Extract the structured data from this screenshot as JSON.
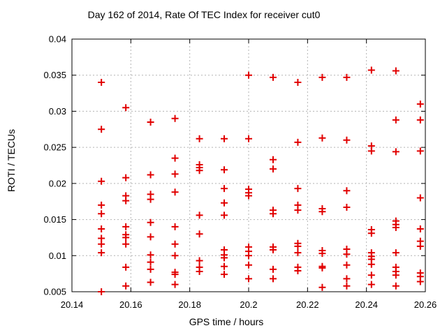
{
  "chart_data": {
    "type": "scatter",
    "title": "Day 162 of 2014, Rate Of TEC Index for receiver cut0",
    "xlabel": "GPS time / hours",
    "ylabel": "ROTI / TECUs",
    "xlim": [
      20.14,
      20.26
    ],
    "ylim": [
      0.005,
      0.04
    ],
    "xticks": [
      20.14,
      20.16,
      20.18,
      20.2,
      20.22,
      20.24,
      20.26
    ],
    "xtick_labels": [
      "20.14",
      "20.16",
      "20.18",
      "20.2",
      "20.22",
      "20.24",
      "20.26"
    ],
    "yticks": [
      0.005,
      0.01,
      0.015,
      0.02,
      0.025,
      0.03,
      0.035,
      0.04
    ],
    "ytick_labels": [
      "0.005",
      "0.01",
      "0.015",
      "0.02",
      "0.025",
      "0.03",
      "0.035",
      "0.04"
    ],
    "grid": true,
    "legend": "none",
    "marker": "plus",
    "colors": {
      "marker": "#e10000",
      "grid": "#b3b3b3",
      "axis": "#000000",
      "text": "#000000",
      "background": "#ffffff"
    },
    "series": [
      {
        "name": "ROTI receiver cut0",
        "points": [
          [
            20.15,
            0.034
          ],
          [
            20.15,
            0.0275
          ],
          [
            20.15,
            0.0203
          ],
          [
            20.15,
            0.017
          ],
          [
            20.15,
            0.0158
          ],
          [
            20.15,
            0.0137
          ],
          [
            20.15,
            0.0124
          ],
          [
            20.15,
            0.0116
          ],
          [
            20.15,
            0.0104
          ],
          [
            20.15,
            0.005
          ],
          [
            20.1583,
            0.0305
          ],
          [
            20.1583,
            0.0208
          ],
          [
            20.1583,
            0.0183
          ],
          [
            20.1583,
            0.0176
          ],
          [
            20.1583,
            0.014
          ],
          [
            20.1583,
            0.0129
          ],
          [
            20.1583,
            0.0125
          ],
          [
            20.1583,
            0.0116
          ],
          [
            20.1583,
            0.0084
          ],
          [
            20.1583,
            0.0058
          ],
          [
            20.1667,
            0.0285
          ],
          [
            20.1667,
            0.0212
          ],
          [
            20.1667,
            0.0185
          ],
          [
            20.1667,
            0.0178
          ],
          [
            20.1667,
            0.0146
          ],
          [
            20.1667,
            0.0126
          ],
          [
            20.1667,
            0.0101
          ],
          [
            20.1667,
            0.0091
          ],
          [
            20.1667,
            0.0081
          ],
          [
            20.1667,
            0.0063
          ],
          [
            20.175,
            0.029
          ],
          [
            20.175,
            0.0235
          ],
          [
            20.175,
            0.0213
          ],
          [
            20.175,
            0.0188
          ],
          [
            20.175,
            0.014
          ],
          [
            20.175,
            0.0116
          ],
          [
            20.175,
            0.01
          ],
          [
            20.175,
            0.0077
          ],
          [
            20.175,
            0.0074
          ],
          [
            20.175,
            0.006
          ],
          [
            20.1833,
            0.0262
          ],
          [
            20.1833,
            0.0226
          ],
          [
            20.1833,
            0.0222
          ],
          [
            20.1833,
            0.0218
          ],
          [
            20.1833,
            0.0156
          ],
          [
            20.1833,
            0.013
          ],
          [
            20.1833,
            0.0093
          ],
          [
            20.1833,
            0.0084
          ],
          [
            20.1833,
            0.0078
          ],
          [
            20.1917,
            0.0262
          ],
          [
            20.1917,
            0.0219
          ],
          [
            20.1917,
            0.0193
          ],
          [
            20.1917,
            0.0173
          ],
          [
            20.1917,
            0.0156
          ],
          [
            20.1917,
            0.0108
          ],
          [
            20.1917,
            0.0101
          ],
          [
            20.1917,
            0.0097
          ],
          [
            20.1917,
            0.0085
          ],
          [
            20.1917,
            0.0074
          ],
          [
            20.2,
            0.035
          ],
          [
            20.2,
            0.0262
          ],
          [
            20.2,
            0.0192
          ],
          [
            20.2,
            0.0187
          ],
          [
            20.2,
            0.0183
          ],
          [
            20.2,
            0.0112
          ],
          [
            20.2,
            0.0106
          ],
          [
            20.2,
            0.01
          ],
          [
            20.2,
            0.0087
          ],
          [
            20.2,
            0.0068
          ],
          [
            20.2083,
            0.0347
          ],
          [
            20.2083,
            0.0233
          ],
          [
            20.2083,
            0.022
          ],
          [
            20.2083,
            0.0163
          ],
          [
            20.2083,
            0.0158
          ],
          [
            20.2083,
            0.0112
          ],
          [
            20.2083,
            0.0108
          ],
          [
            20.2083,
            0.0081
          ],
          [
            20.2083,
            0.0068
          ],
          [
            20.2167,
            0.034
          ],
          [
            20.2167,
            0.0257
          ],
          [
            20.2167,
            0.0193
          ],
          [
            20.2167,
            0.017
          ],
          [
            20.2167,
            0.0163
          ],
          [
            20.2167,
            0.0117
          ],
          [
            20.2167,
            0.0113
          ],
          [
            20.2167,
            0.0104
          ],
          [
            20.2167,
            0.0084
          ],
          [
            20.2167,
            0.0079
          ],
          [
            20.225,
            0.0347
          ],
          [
            20.225,
            0.0263
          ],
          [
            20.225,
            0.0165
          ],
          [
            20.225,
            0.0161
          ],
          [
            20.225,
            0.0107
          ],
          [
            20.225,
            0.0103
          ],
          [
            20.225,
            0.0085
          ],
          [
            20.225,
            0.0083
          ],
          [
            20.225,
            0.0056
          ],
          [
            20.2333,
            0.0347
          ],
          [
            20.2333,
            0.026
          ],
          [
            20.2333,
            0.019
          ],
          [
            20.2333,
            0.0167
          ],
          [
            20.2333,
            0.0109
          ],
          [
            20.2333,
            0.0102
          ],
          [
            20.2333,
            0.0087
          ],
          [
            20.2333,
            0.0068
          ],
          [
            20.2333,
            0.0058
          ],
          [
            20.2417,
            0.0357
          ],
          [
            20.2417,
            0.0252
          ],
          [
            20.2417,
            0.0245
          ],
          [
            20.2417,
            0.0136
          ],
          [
            20.2417,
            0.0131
          ],
          [
            20.2417,
            0.0104
          ],
          [
            20.2417,
            0.0099
          ],
          [
            20.2417,
            0.0095
          ],
          [
            20.2417,
            0.0088
          ],
          [
            20.2417,
            0.0073
          ],
          [
            20.2417,
            0.006
          ],
          [
            20.25,
            0.0356
          ],
          [
            20.25,
            0.0288
          ],
          [
            20.25,
            0.0244
          ],
          [
            20.25,
            0.0148
          ],
          [
            20.25,
            0.0143
          ],
          [
            20.25,
            0.0139
          ],
          [
            20.25,
            0.0104
          ],
          [
            20.25,
            0.0084
          ],
          [
            20.25,
            0.0078
          ],
          [
            20.25,
            0.0073
          ],
          [
            20.25,
            0.0058
          ],
          [
            20.2583,
            0.031
          ],
          [
            20.2583,
            0.0288
          ],
          [
            20.2583,
            0.0245
          ],
          [
            20.2583,
            0.018
          ],
          [
            20.2583,
            0.0137
          ],
          [
            20.2583,
            0.012
          ],
          [
            20.2583,
            0.0113
          ],
          [
            20.2583,
            0.0076
          ],
          [
            20.2583,
            0.0071
          ],
          [
            20.2583,
            0.0064
          ]
        ]
      }
    ]
  }
}
